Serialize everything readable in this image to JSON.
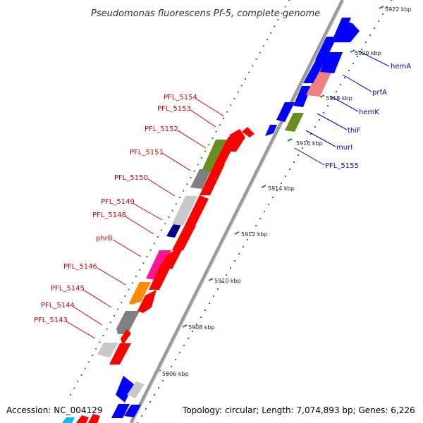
{
  "title": "Pseudomonas fluorescens Pf-5, complete genome",
  "footer": {
    "accession": "Accession: NC_004129",
    "summary": "Topology: circular; Length: 7,074,893 bp; Genes: 6,226"
  },
  "axis": {
    "tick_labels": [
      "5906 kbp",
      "5908 kbp",
      "5910 kbp",
      "5912 kbp",
      "5914 kbp",
      "5916 kbp",
      "5918 kbp",
      "5920 kbp",
      "5922 kbp"
    ]
  },
  "colors": {
    "forward_strand": "#ff0000",
    "reverse_strand": "#0000ff",
    "backbone": "#8a8a8a",
    "tick": "#228b22",
    "label_forward": "#cc0000",
    "label_reverse": "#0000cc",
    "functional_categories": [
      "#808080",
      "#c8c8c8",
      "#6b8e23",
      "#ff1493",
      "#ff8c00",
      "#f08080",
      "#00008b",
      "#00bfff"
    ]
  },
  "genes": {
    "reverse": [
      "PFL_5143",
      "PFL_5144",
      "PFL_5145",
      "PFL_5146",
      "phrB",
      "PFL_5148",
      "PFL_5149",
      "PFL_5150",
      "PFL_5151",
      "PFL_5152",
      "PFL_5153",
      "PFL_5154"
    ],
    "forward": [
      "PFL_5155",
      "murI",
      "thiF",
      "hemK",
      "prfA",
      "hemA"
    ]
  }
}
